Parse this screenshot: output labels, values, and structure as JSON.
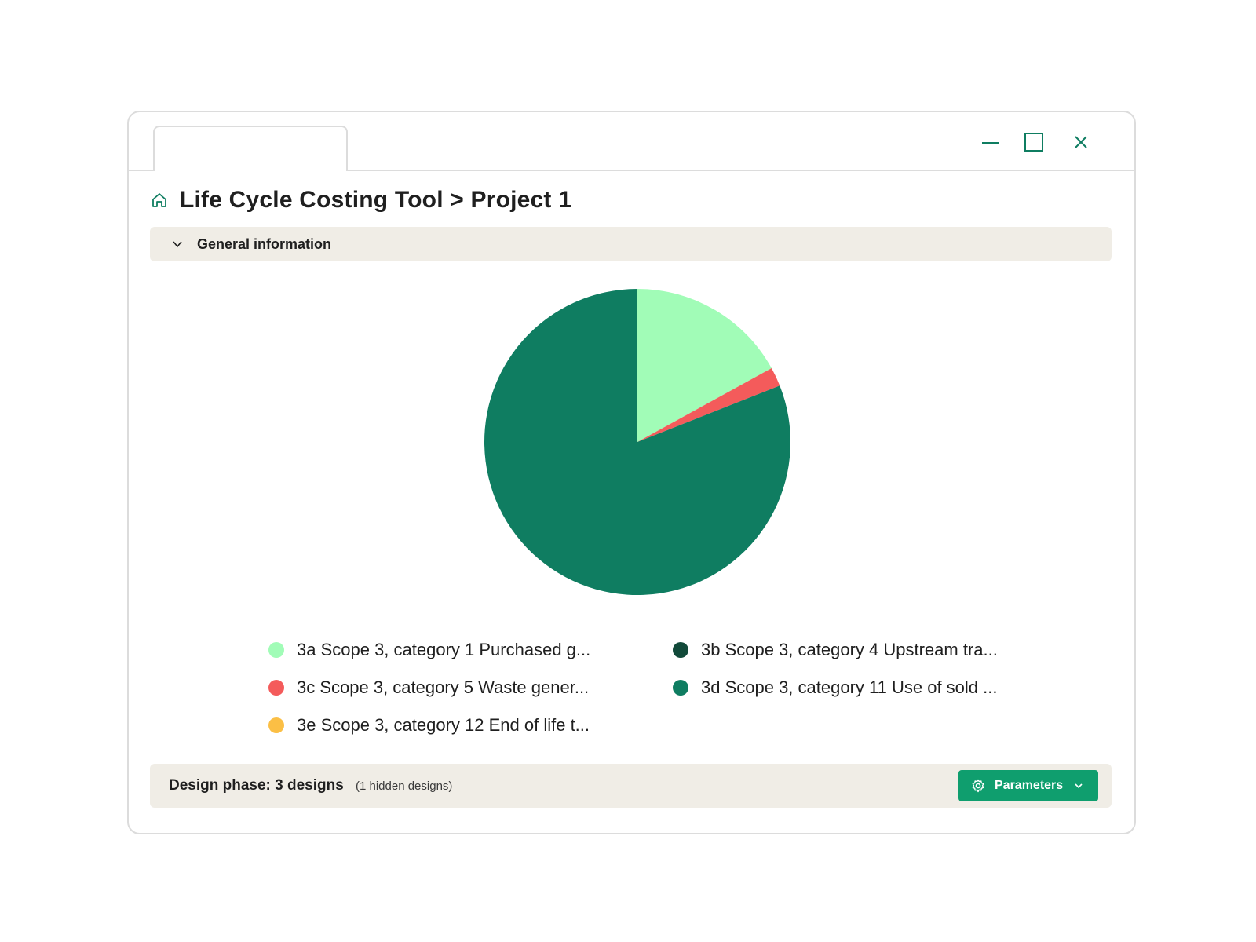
{
  "window": {
    "tab_title": "",
    "controls": [
      "minimize-icon",
      "maximize-icon",
      "close-icon"
    ]
  },
  "header": {
    "icon": "home-icon",
    "title": "Life Cycle Costing Tool > Project 1"
  },
  "section": {
    "label": "General information",
    "expanded": true,
    "icon": "chevron-down-icon"
  },
  "chart_data": {
    "type": "pie",
    "series": [
      {
        "name": "3a Scope 3, category 1 Purchased g...",
        "value": 17,
        "color": "#a1fcb7"
      },
      {
        "name": "3b Scope 3, category 4 Upstream tra...",
        "value": 0,
        "color": "#124a3a"
      },
      {
        "name": "3c Scope 3, category 5 Waste gener...",
        "value": 2,
        "color": "#f45b5b"
      },
      {
        "name": "3d Scope 3, category 11 Use of sold ...",
        "value": 81,
        "color": "#0f7d61"
      },
      {
        "name": "3e Scope 3, category 12 End of life t...",
        "value": 0,
        "color": "#fbbf45"
      }
    ],
    "legend": "bottom"
  },
  "footer": {
    "title": "Design phase: 3 designs",
    "note": "(1 hidden designs)",
    "button_label": "Parameters",
    "button_icon": "gear-icon",
    "button_chevron": "chevron-down-icon",
    "accent": "#0f9e6e"
  }
}
